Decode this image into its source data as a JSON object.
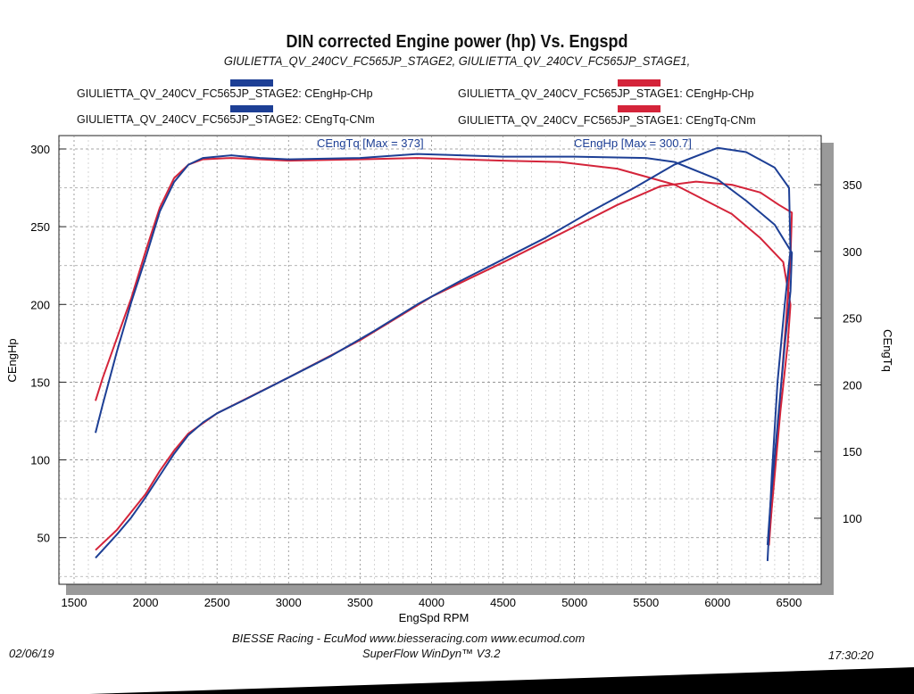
{
  "colors": {
    "stage2": "#1d3f95",
    "stage1": "#d4243a"
  },
  "footer": {
    "date": "02/06/19",
    "time": "17:30:20",
    "credit": "BIESSE Racing - EcuMod www.biesseracing.com www.ecumod.com",
    "software": "SuperFlow WinDyn™ V3.2"
  },
  "chart_data": {
    "type": "line",
    "title": "DIN corrected Engine power (hp) Vs. Engspd",
    "subtitle": "GIULIETTA_QV_240CV_FC565JP_STAGE2, GIULIETTA_QV_240CV_FC565JP_STAGE1,",
    "xlabel": "EngSpd RPM",
    "ylabel": "CEngHp",
    "y2label": "CEngTq",
    "xlim": [
      1394,
      6725
    ],
    "ylim": [
      20,
      308.6
    ],
    "y2lim": [
      50.5,
      386.8
    ],
    "xticks": [
      1500,
      2000,
      2500,
      3000,
      3500,
      4000,
      4500,
      5000,
      5500,
      6000,
      6500
    ],
    "yticks": [
      50,
      100,
      150,
      200,
      250,
      300
    ],
    "y2ticks": [
      100,
      150,
      200,
      250,
      300,
      350
    ],
    "grid": true,
    "legend": [
      "GIULIETTA_QV_240CV_FC565JP_STAGE2: CEngHp-CHp",
      "GIULIETTA_QV_240CV_FC565JP_STAGE1: CEngHp-CHp",
      "GIULIETTA_QV_240CV_FC565JP_STAGE2: CEngTq-CNm",
      "GIULIETTA_QV_240CV_FC565JP_STAGE1: CEngTq-CNm"
    ],
    "annotations": [
      "CEngTq [Max = 373]",
      "CEngHp [Max = 300.7]"
    ],
    "series": [
      {
        "name": "GIULIETTA_QV_240CV_FC565JP_STAGE1: CEngTq-CNm",
        "axis": "right",
        "color": "#d4243a",
        "points": [
          [
            1650,
            188
          ],
          [
            1700,
            205
          ],
          [
            1800,
            235
          ],
          [
            1900,
            265
          ],
          [
            2000,
            300
          ],
          [
            2100,
            333
          ],
          [
            2200,
            355
          ],
          [
            2300,
            365
          ],
          [
            2400,
            369
          ],
          [
            2600,
            370
          ],
          [
            3000,
            368
          ],
          [
            3500,
            369
          ],
          [
            3900,
            370
          ],
          [
            4500,
            368
          ],
          [
            4900,
            367
          ],
          [
            5300,
            362
          ],
          [
            5700,
            350
          ],
          [
            6100,
            328
          ],
          [
            6300,
            310
          ],
          [
            6460,
            292
          ],
          [
            6510,
            260
          ],
          [
            6490,
            230
          ],
          [
            6440,
            180
          ],
          [
            6390,
            120
          ],
          [
            6360,
            85
          ]
        ]
      },
      {
        "name": "GIULIETTA_QV_240CV_FC565JP_STAGE1: CEngHp-CHp",
        "axis": "left",
        "color": "#d4243a",
        "points": [
          [
            1650,
            42
          ],
          [
            1800,
            55
          ],
          [
            2000,
            78
          ],
          [
            2100,
            93
          ],
          [
            2200,
            106
          ],
          [
            2300,
            117
          ],
          [
            2500,
            130
          ],
          [
            3000,
            153
          ],
          [
            3500,
            177
          ],
          [
            4000,
            205
          ],
          [
            4500,
            227
          ],
          [
            5000,
            250
          ],
          [
            5300,
            264
          ],
          [
            5600,
            276
          ],
          [
            5850,
            279
          ],
          [
            6100,
            277
          ],
          [
            6300,
            272
          ],
          [
            6430,
            264
          ],
          [
            6520,
            259
          ],
          [
            6510,
            230
          ],
          [
            6480,
            190
          ],
          [
            6430,
            130
          ],
          [
            6380,
            70
          ],
          [
            6360,
            45
          ]
        ]
      },
      {
        "name": "GIULIETTA_QV_240CV_FC565JP_STAGE2: CEngTq-CNm",
        "axis": "right",
        "color": "#1d3f95",
        "points": [
          [
            1650,
            164
          ],
          [
            1700,
            185
          ],
          [
            1800,
            225
          ],
          [
            1900,
            262
          ],
          [
            2000,
            295
          ],
          [
            2100,
            330
          ],
          [
            2200,
            352
          ],
          [
            2300,
            365
          ],
          [
            2400,
            370
          ],
          [
            2600,
            372
          ],
          [
            2800,
            370
          ],
          [
            3000,
            369
          ],
          [
            3500,
            370
          ],
          [
            3900,
            373
          ],
          [
            4500,
            371
          ],
          [
            5000,
            371
          ],
          [
            5500,
            370
          ],
          [
            5700,
            367
          ],
          [
            6000,
            354
          ],
          [
            6200,
            338
          ],
          [
            6400,
            320
          ],
          [
            6520,
            299
          ],
          [
            6510,
            270
          ],
          [
            6470,
            230
          ],
          [
            6420,
            170
          ],
          [
            6370,
            110
          ],
          [
            6350,
            80
          ]
        ]
      },
      {
        "name": "GIULIETTA_QV_240CV_FC565JP_STAGE2: CEngHp-CHp",
        "axis": "left",
        "color": "#1d3f95",
        "points": [
          [
            1650,
            37
          ],
          [
            1700,
            42
          ],
          [
            1800,
            52
          ],
          [
            1900,
            63
          ],
          [
            2000,
            76
          ],
          [
            2100,
            90
          ],
          [
            2200,
            104
          ],
          [
            2300,
            116
          ],
          [
            2400,
            124
          ],
          [
            2500,
            130
          ],
          [
            2700,
            139
          ],
          [
            3000,
            153
          ],
          [
            3300,
            167
          ],
          [
            3600,
            183
          ],
          [
            3900,
            200
          ],
          [
            4200,
            215
          ],
          [
            4500,
            229
          ],
          [
            4800,
            243
          ],
          [
            5100,
            259
          ],
          [
            5400,
            274
          ],
          [
            5700,
            290
          ],
          [
            6000,
            300.7
          ],
          [
            6200,
            298
          ],
          [
            6400,
            288
          ],
          [
            6500,
            275
          ],
          [
            6510,
            235
          ],
          [
            6470,
            200
          ],
          [
            6420,
            150
          ],
          [
            6380,
            90
          ],
          [
            6350,
            35
          ]
        ]
      }
    ]
  }
}
